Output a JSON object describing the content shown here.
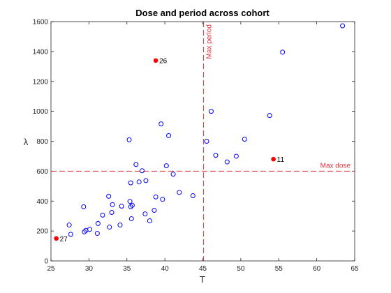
{
  "chart_data": {
    "type": "scatter",
    "title": "Dose and period across cohort",
    "xlabel": "T",
    "ylabel": "λ",
    "xlim": [
      25,
      65
    ],
    "ylim": [
      0,
      1600
    ],
    "xticks": [
      25,
      30,
      35,
      40,
      45,
      50,
      55,
      60,
      65
    ],
    "yticks": [
      0,
      200,
      400,
      600,
      800,
      1000,
      1200,
      1400,
      1600
    ],
    "grid": false,
    "marker_color": "#0000ff",
    "highlight_color": "#ff0000",
    "ref_color": "#e0323a",
    "points": [
      {
        "x": 27.4,
        "y": 240
      },
      {
        "x": 27.6,
        "y": 178
      },
      {
        "x": 29.3,
        "y": 362
      },
      {
        "x": 29.4,
        "y": 194
      },
      {
        "x": 29.6,
        "y": 204
      },
      {
        "x": 30.1,
        "y": 211
      },
      {
        "x": 31.1,
        "y": 184
      },
      {
        "x": 31.2,
        "y": 250
      },
      {
        "x": 31.8,
        "y": 306
      },
      {
        "x": 32.6,
        "y": 432
      },
      {
        "x": 32.7,
        "y": 226
      },
      {
        "x": 33.0,
        "y": 324
      },
      {
        "x": 33.1,
        "y": 376
      },
      {
        "x": 34.1,
        "y": 240
      },
      {
        "x": 34.3,
        "y": 366
      },
      {
        "x": 35.3,
        "y": 810
      },
      {
        "x": 35.4,
        "y": 398
      },
      {
        "x": 35.5,
        "y": 362
      },
      {
        "x": 35.5,
        "y": 522
      },
      {
        "x": 35.6,
        "y": 282
      },
      {
        "x": 35.7,
        "y": 372
      },
      {
        "x": 36.2,
        "y": 645
      },
      {
        "x": 36.6,
        "y": 528
      },
      {
        "x": 37.0,
        "y": 603
      },
      {
        "x": 37.4,
        "y": 314
      },
      {
        "x": 37.5,
        "y": 537
      },
      {
        "x": 38.0,
        "y": 268
      },
      {
        "x": 38.6,
        "y": 338
      },
      {
        "x": 38.8,
        "y": 428
      },
      {
        "x": 39.5,
        "y": 916
      },
      {
        "x": 39.7,
        "y": 412
      },
      {
        "x": 40.2,
        "y": 636
      },
      {
        "x": 40.5,
        "y": 838
      },
      {
        "x": 41.1,
        "y": 580
      },
      {
        "x": 41.9,
        "y": 458
      },
      {
        "x": 43.7,
        "y": 436
      },
      {
        "x": 45.5,
        "y": 800
      },
      {
        "x": 46.1,
        "y": 1000
      },
      {
        "x": 46.7,
        "y": 706
      },
      {
        "x": 48.2,
        "y": 662
      },
      {
        "x": 49.4,
        "y": 700
      },
      {
        "x": 50.5,
        "y": 814
      },
      {
        "x": 53.8,
        "y": 972
      },
      {
        "x": 55.5,
        "y": 1396
      },
      {
        "x": 63.4,
        "y": 1572
      }
    ],
    "highlighted": [
      {
        "x": 38.8,
        "y": 1340,
        "label": "26"
      },
      {
        "x": 54.3,
        "y": 680,
        "label": "11"
      },
      {
        "x": 25.7,
        "y": 150,
        "label": "27"
      }
    ],
    "reference_lines": {
      "vertical": {
        "x": 45.1,
        "label": "Max period"
      },
      "horizontal": {
        "y": 600,
        "label": "Max dose"
      }
    }
  }
}
